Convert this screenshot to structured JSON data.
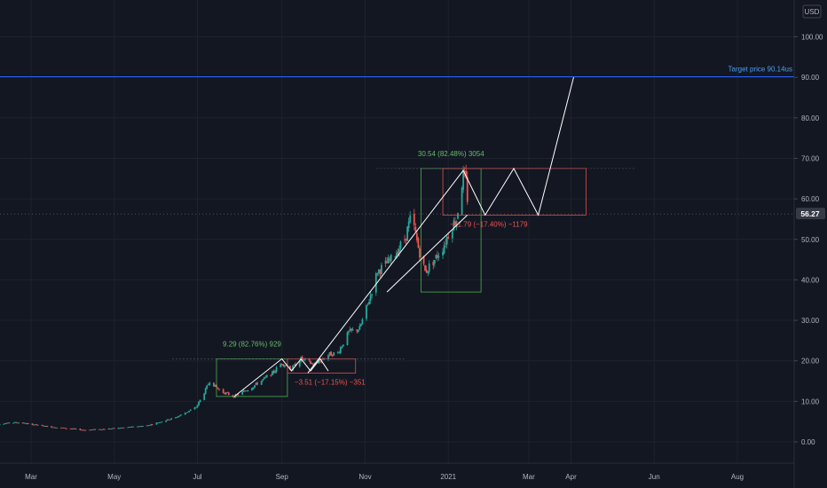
{
  "colors": {
    "background": "#131722",
    "grid": "#1e222d",
    "up": "#26a69a",
    "down": "#ef5350",
    "target_line": "#2962ff",
    "target_text": "#4b9ef5",
    "drawing": "#ffffff",
    "gain_box": "#4caf50",
    "loss_box": "#e04b4b",
    "gain_text": "#66bb6a",
    "loss_text": "#ef5350"
  },
  "currency_label": "USD",
  "price_badge": "56.27",
  "target_label": "Target price 90.14us",
  "chart_data": {
    "type": "candlestick",
    "y_ticks": [
      "0.00",
      "10.00",
      "20.00",
      "30.00",
      "40.00",
      "50.00",
      "60.00",
      "70.00",
      "80.00",
      "90.00",
      "100.00"
    ],
    "ylim": [
      -5,
      106
    ],
    "x_ticks": [
      {
        "label": "Mar",
        "date": "2020-03-01"
      },
      {
        "label": "May",
        "date": "2020-05-01"
      },
      {
        "label": "Jul",
        "date": "2020-07-01"
      },
      {
        "label": "Sep",
        "date": "2020-09-01"
      },
      {
        "label": "Nov",
        "date": "2020-11-01"
      },
      {
        "label": "2021",
        "date": "2021-01-01"
      },
      {
        "label": "Mar",
        "date": "2021-03-01"
      },
      {
        "label": "Apr",
        "date": "2021-04-01"
      },
      {
        "label": "Jun",
        "date": "2021-06-01"
      },
      {
        "label": "Aug",
        "date": "2021-08-01"
      }
    ],
    "price_anchors": [
      [
        "2020-02-01",
        4.3
      ],
      [
        "2020-02-20",
        4.8
      ],
      [
        "2020-03-15",
        3.7
      ],
      [
        "2020-04-10",
        2.9
      ],
      [
        "2020-05-01",
        3.3
      ],
      [
        "2020-05-25",
        4.0
      ],
      [
        "2020-06-15",
        6.0
      ],
      [
        "2020-06-30",
        8.5
      ],
      [
        "2020-07-05",
        11.5
      ],
      [
        "2020-07-10",
        15.0
      ],
      [
        "2020-07-18",
        12.5
      ],
      [
        "2020-07-28",
        11.2
      ],
      [
        "2020-08-10",
        13.5
      ],
      [
        "2020-08-25",
        17.0
      ],
      [
        "2020-09-01",
        19.5
      ],
      [
        "2020-09-08",
        18.0
      ],
      [
        "2020-09-15",
        20.5
      ],
      [
        "2020-09-25",
        19.0
      ],
      [
        "2020-10-05",
        21.5
      ],
      [
        "2020-10-12",
        22.0
      ],
      [
        "2020-10-20",
        27.0
      ],
      [
        "2020-10-28",
        28.0
      ],
      [
        "2020-11-03",
        34.0
      ],
      [
        "2020-11-10",
        42.0
      ],
      [
        "2020-11-20",
        45.0
      ],
      [
        "2020-11-30",
        50.0
      ],
      [
        "2020-12-05",
        56.0
      ],
      [
        "2020-12-10",
        48.0
      ],
      [
        "2020-12-15",
        42.0
      ],
      [
        "2020-12-22",
        45.0
      ],
      [
        "2020-12-28",
        48.0
      ],
      [
        "2021-01-03",
        53.0
      ],
      [
        "2021-01-07",
        55.0
      ],
      [
        "2021-01-12",
        66.0
      ],
      [
        "2021-01-14",
        64.0
      ],
      [
        "2021-01-16",
        56.27
      ]
    ],
    "target_price": 90.14,
    "measurements": [
      {
        "label": "9.29 (82.76%) 929",
        "kind": "gain",
        "x0": "2020-07-15",
        "x1": "2020-09-05",
        "y0": 11.2,
        "y1": 20.5
      },
      {
        "label": "−3.51 (−17.15%) −351",
        "kind": "loss",
        "x0": "2020-09-05",
        "x1": "2020-10-25",
        "y0": 17.0,
        "y1": 20.5
      },
      {
        "label": "30.54 (82.48%) 3054",
        "kind": "gain",
        "x0": "2020-12-12",
        "x1": "2021-01-25",
        "y0": 37.0,
        "y1": 67.5
      },
      {
        "label": "−11.79 (−17.40%) −1179",
        "kind": "loss",
        "x0": "2020-12-28",
        "x1": "2021-04-12",
        "y0": 56.0,
        "y1": 67.5
      }
    ],
    "projection_lines": [
      [
        [
          "2020-07-28",
          11.2
        ],
        [
          "2020-09-01",
          20.5
        ],
        [
          "2020-09-08",
          17.5
        ],
        [
          "2020-09-15",
          20.5
        ],
        [
          "2020-09-22",
          17.5
        ],
        [
          "2020-09-29",
          20.5
        ],
        [
          "2020-10-05",
          17.5
        ]
      ],
      [
        [
          "2020-09-20",
          17.0
        ],
        [
          "2021-01-12",
          67.0
        ]
      ],
      [
        [
          "2020-11-17",
          37.0
        ],
        [
          "2021-01-15",
          56.0
        ]
      ],
      [
        [
          "2021-01-12",
          67.0
        ],
        [
          "2021-01-28",
          56.0
        ],
        [
          "2021-02-18",
          67.5
        ],
        [
          "2021-03-08",
          56.0
        ],
        [
          "2021-04-03",
          90.14
        ]
      ]
    ]
  }
}
